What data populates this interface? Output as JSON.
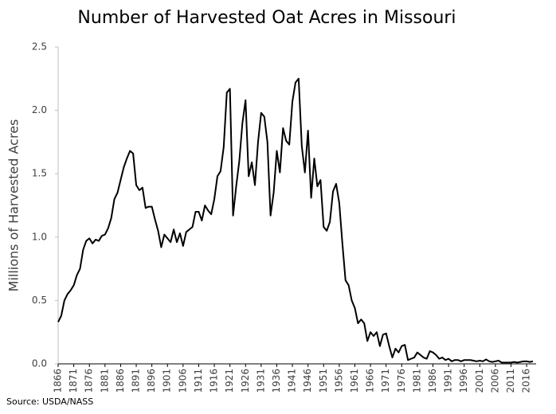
{
  "chart_data": {
    "type": "line",
    "title": "Number of Harvested Oat Acres in Missouri",
    "y_label": "Millions of Harvested Acres",
    "source": "Source: USDA/NASS",
    "color": "#000000",
    "x": [
      1866,
      1867,
      1868,
      1869,
      1870,
      1871,
      1872,
      1873,
      1874,
      1875,
      1876,
      1877,
      1878,
      1879,
      1880,
      1881,
      1882,
      1883,
      1884,
      1885,
      1886,
      1887,
      1888,
      1889,
      1890,
      1891,
      1892,
      1893,
      1894,
      1895,
      1896,
      1897,
      1898,
      1899,
      1900,
      1901,
      1902,
      1903,
      1904,
      1905,
      1906,
      1907,
      1908,
      1909,
      1910,
      1911,
      1912,
      1913,
      1914,
      1915,
      1916,
      1917,
      1918,
      1919,
      1920,
      1921,
      1922,
      1923,
      1924,
      1925,
      1926,
      1927,
      1928,
      1929,
      1930,
      1931,
      1932,
      1933,
      1934,
      1935,
      1936,
      1937,
      1938,
      1939,
      1940,
      1941,
      1942,
      1943,
      1944,
      1945,
      1946,
      1947,
      1948,
      1949,
      1950,
      1951,
      1952,
      1953,
      1954,
      1955,
      1956,
      1957,
      1958,
      1959,
      1960,
      1961,
      1962,
      1963,
      1964,
      1965,
      1966,
      1967,
      1968,
      1969,
      1970,
      1971,
      1972,
      1973,
      1974,
      1975,
      1976,
      1977,
      1978,
      1979,
      1980,
      1981,
      1982,
      1983,
      1984,
      1985,
      1986,
      1987,
      1988,
      1989,
      1990,
      1991,
      1992,
      1993,
      1994,
      1995,
      1996,
      1997,
      1998,
      1999,
      2000,
      2001,
      2002,
      2003,
      2004,
      2005,
      2006,
      2007,
      2008,
      2009,
      2010,
      2011,
      2012,
      2013,
      2014,
      2015,
      2016,
      2017,
      2018
    ],
    "values": [
      0.33,
      0.38,
      0.5,
      0.55,
      0.58,
      0.62,
      0.7,
      0.75,
      0.9,
      0.97,
      0.99,
      0.95,
      0.98,
      0.97,
      1.01,
      1.02,
      1.07,
      1.15,
      1.3,
      1.35,
      1.45,
      1.55,
      1.62,
      1.68,
      1.66,
      1.41,
      1.37,
      1.39,
      1.23,
      1.24,
      1.24,
      1.14,
      1.05,
      0.92,
      1.02,
      0.99,
      0.96,
      1.06,
      0.96,
      1.03,
      0.93,
      1.04,
      1.06,
      1.08,
      1.2,
      1.2,
      1.13,
      1.25,
      1.21,
      1.18,
      1.3,
      1.48,
      1.52,
      1.71,
      2.14,
      2.17,
      1.17,
      1.4,
      1.6,
      1.9,
      2.08,
      1.48,
      1.59,
      1.41,
      1.75,
      1.98,
      1.95,
      1.75,
      1.17,
      1.35,
      1.68,
      1.51,
      1.86,
      1.76,
      1.73,
      2.07,
      2.22,
      2.25,
      1.72,
      1.51,
      1.84,
      1.31,
      1.62,
      1.4,
      1.45,
      1.08,
      1.05,
      1.12,
      1.36,
      1.42,
      1.27,
      0.95,
      0.66,
      0.62,
      0.5,
      0.44,
      0.32,
      0.35,
      0.32,
      0.18,
      0.25,
      0.22,
      0.25,
      0.14,
      0.23,
      0.24,
      0.14,
      0.05,
      0.12,
      0.09,
      0.14,
      0.15,
      0.03,
      0.04,
      0.05,
      0.09,
      0.07,
      0.05,
      0.04,
      0.1,
      0.09,
      0.07,
      0.04,
      0.05,
      0.03,
      0.04,
      0.02,
      0.03,
      0.03,
      0.02,
      0.03,
      0.03,
      0.03,
      0.025,
      0.02,
      0.025,
      0.02,
      0.035,
      0.02,
      0.015,
      0.02,
      0.025,
      0.01,
      0.01,
      0.01,
      0.01,
      0.015,
      0.01,
      0.015,
      0.02,
      0.02,
      0.015,
      0.02
    ],
    "xlim": [
      1866,
      2018
    ],
    "xticks": [
      1866,
      1871,
      1876,
      1881,
      1886,
      1891,
      1896,
      1901,
      1906,
      1911,
      1916,
      1921,
      1926,
      1931,
      1936,
      1941,
      1946,
      1951,
      1956,
      1961,
      1966,
      1971,
      1976,
      1981,
      1986,
      1991,
      1996,
      2001,
      2006,
      2011,
      2016
    ],
    "ylim": [
      0,
      2.5
    ],
    "yticks": [
      {
        "value": 0,
        "label": "0.0"
      },
      0.5,
      {
        "value": 1,
        "label": "1.0"
      },
      1.5,
      {
        "value": 2,
        "label": "2.0"
      },
      2.5
    ]
  }
}
